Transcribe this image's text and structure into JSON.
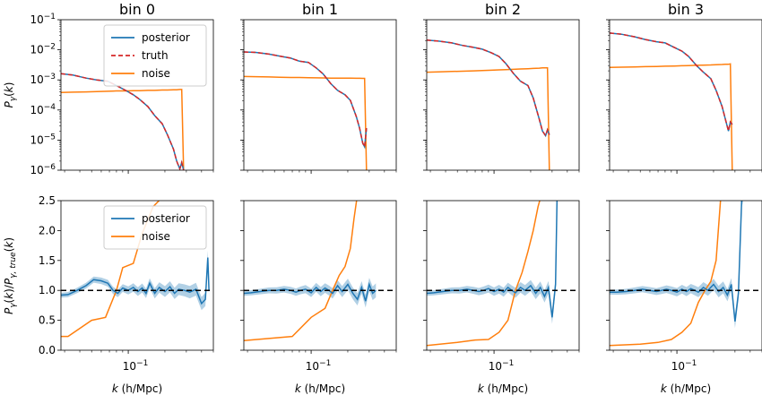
{
  "chart_data": {
    "type": "line",
    "x_axis": {
      "label": "k (h/Mpc)",
      "scale": "log",
      "range": [
        0.028,
        0.5
      ],
      "major_tick_label": "10^-1"
    },
    "top_row": {
      "ylabel": "P_γ(k)",
      "y_scale": "log",
      "ylim": [
        1e-06,
        0.1
      ],
      "yticks": [
        "10^-6",
        "10^-5",
        "10^-4",
        "10^-3",
        "10^-2",
        "10^-1"
      ],
      "legend": [
        "posterior",
        "truth",
        "noise"
      ],
      "legend_position": "upper right of first panel"
    },
    "bottom_row": {
      "ylabel": "P_γ(k)/P_γ,true(k)",
      "y_scale": "linear",
      "ylim": [
        0.0,
        2.5
      ],
      "yticks": [
        "0.0",
        "0.5",
        "1.0",
        "1.5",
        "2.0",
        "2.5"
      ],
      "reference_line": 1.0,
      "legend": [
        "posterior",
        "noise"
      ],
      "legend_position": "upper center of first panel"
    },
    "colors": {
      "posterior": "#1f77b4",
      "truth": "#d62728",
      "noise": "#ff7f0e",
      "reference": "#000000"
    },
    "panels": [
      {
        "title": "bin 0",
        "k": [
          0.028,
          0.035,
          0.045,
          0.055,
          0.068,
          0.08,
          0.095,
          0.11,
          0.125,
          0.145,
          0.165,
          0.19,
          0.21,
          0.235,
          0.25,
          0.265,
          0.275,
          0.285
        ],
        "posterior": [
          0.0016,
          0.00145,
          0.00115,
          0.001,
          0.0009,
          0.00065,
          0.00045,
          0.00032,
          0.00022,
          0.00013,
          6.5e-05,
          3.5e-05,
          1.5e-05,
          5e-06,
          2e-06,
          1.1e-06,
          1.8e-06,
          1e-06
        ],
        "noise": [
          0.00038,
          0.00039,
          0.0004,
          0.00041,
          0.00042,
          0.00043,
          0.00043,
          0.00044,
          0.00044,
          0.00045,
          0.00045,
          0.00046,
          0.00046,
          0.00047,
          0.00047,
          0.00048,
          0.00048,
          1e-06
        ],
        "ratio_k": [
          0.028,
          0.032,
          0.038,
          0.045,
          0.052,
          0.06,
          0.068,
          0.075,
          0.082,
          0.09,
          0.1,
          0.11,
          0.12,
          0.13,
          0.14,
          0.15,
          0.165,
          0.18,
          0.2,
          0.22,
          0.24,
          0.26,
          0.29,
          0.32,
          0.36,
          0.4,
          0.43,
          0.45,
          0.46
        ],
        "ratio_posterior": [
          0.92,
          0.93,
          1.0,
          1.08,
          1.18,
          1.16,
          1.12,
          1.0,
          0.95,
          1.04,
          1.0,
          1.05,
          0.98,
          1.04,
          0.95,
          1.12,
          0.95,
          1.05,
          0.98,
          1.06,
          0.95,
          1.02,
          1.0,
          0.97,
          1.02,
          0.78,
          0.85,
          1.55,
          1.0
        ],
        "ratio_noise": {
          "k": [
            0.028,
            0.032,
            0.05,
            0.065,
            0.08,
            0.09,
            0.11,
            0.13,
            0.16,
            0.2
          ],
          "v": [
            0.23,
            0.23,
            0.5,
            0.55,
            1.0,
            1.38,
            1.45,
            1.95,
            2.4,
            2.6
          ]
        }
      },
      {
        "title": "bin 1",
        "k": [
          0.028,
          0.035,
          0.045,
          0.055,
          0.068,
          0.08,
          0.095,
          0.11,
          0.125,
          0.145,
          0.165,
          0.19,
          0.21,
          0.235,
          0.25,
          0.265,
          0.275,
          0.285
        ],
        "posterior": [
          0.0085,
          0.0082,
          0.0072,
          0.0062,
          0.0053,
          0.0042,
          0.0038,
          0.0025,
          0.0016,
          0.00075,
          0.00045,
          0.00032,
          0.00021,
          6e-05,
          2.5e-05,
          8e-06,
          6e-06,
          2.5e-05
        ],
        "noise": [
          0.0013,
          0.00128,
          0.00125,
          0.00122,
          0.0012,
          0.0012,
          0.00118,
          0.00117,
          0.00116,
          0.00115,
          0.00115,
          0.00114,
          0.00114,
          0.00113,
          0.00113,
          0.00112,
          0.00112,
          1e-06
        ],
        "ratio_k": [
          0.028,
          0.032,
          0.038,
          0.045,
          0.052,
          0.06,
          0.068,
          0.075,
          0.082,
          0.09,
          0.1,
          0.11,
          0.12,
          0.13,
          0.14,
          0.15,
          0.165,
          0.18,
          0.2,
          0.22,
          0.24,
          0.26,
          0.28,
          0.3,
          0.32,
          0.34
        ],
        "ratio_posterior": [
          0.95,
          0.96,
          0.98,
          1.0,
          1.0,
          1.02,
          1.0,
          0.97,
          1.0,
          1.02,
          0.96,
          1.05,
          0.98,
          1.04,
          1.0,
          0.95,
          1.08,
          0.98,
          1.1,
          0.95,
          0.85,
          1.05,
          0.82,
          1.1,
          0.95,
          1.0
        ],
        "ratio_noise": {
          "k": [
            0.028,
            0.07,
            0.1,
            0.13,
            0.15,
            0.17,
            0.19,
            0.21,
            0.225,
            0.24
          ],
          "v": [
            0.16,
            0.23,
            0.55,
            0.7,
            1.0,
            1.25,
            1.4,
            1.7,
            2.2,
            2.6
          ]
        }
      },
      {
        "title": "bin 2",
        "k": [
          0.028,
          0.035,
          0.045,
          0.055,
          0.068,
          0.08,
          0.095,
          0.11,
          0.125,
          0.145,
          0.165,
          0.19,
          0.21,
          0.235,
          0.25,
          0.265,
          0.275,
          0.285
        ],
        "posterior": [
          0.021,
          0.0195,
          0.017,
          0.014,
          0.012,
          0.0105,
          0.008,
          0.006,
          0.0035,
          0.0016,
          0.0009,
          0.00065,
          0.00025,
          5e-05,
          2e-05,
          1.4e-05,
          2.2e-05,
          1.5e-05
        ],
        "noise": [
          0.0018,
          0.00185,
          0.0019,
          0.00195,
          0.002,
          0.00205,
          0.0021,
          0.00215,
          0.0022,
          0.00225,
          0.0023,
          0.00235,
          0.0024,
          0.00245,
          0.0025,
          0.0025,
          0.0025,
          1e-06
        ],
        "ratio_k": [
          0.028,
          0.032,
          0.038,
          0.045,
          0.052,
          0.06,
          0.068,
          0.075,
          0.082,
          0.09,
          0.1,
          0.11,
          0.12,
          0.13,
          0.14,
          0.15,
          0.165,
          0.18,
          0.2,
          0.22,
          0.24,
          0.26,
          0.28,
          0.3,
          0.32,
          0.33,
          0.34
        ],
        "ratio_posterior": [
          0.95,
          0.96,
          0.98,
          1.0,
          1.0,
          1.02,
          1.0,
          0.98,
          1.0,
          1.03,
          0.98,
          1.02,
          0.97,
          1.05,
          1.0,
          0.96,
          1.05,
          1.0,
          1.08,
          0.95,
          1.05,
          0.9,
          1.05,
          0.55,
          1.1,
          2.7,
          2.7
        ],
        "ratio_noise": {
          "k": [
            0.028,
            0.05,
            0.07,
            0.09,
            0.11,
            0.13,
            0.15,
            0.17,
            0.19,
            0.21,
            0.23,
            0.245
          ],
          "v": [
            0.08,
            0.13,
            0.17,
            0.18,
            0.3,
            0.5,
            1.0,
            1.3,
            1.65,
            2.0,
            2.4,
            2.6
          ]
        }
      },
      {
        "title": "bin 3",
        "k": [
          0.028,
          0.035,
          0.045,
          0.055,
          0.068,
          0.08,
          0.095,
          0.11,
          0.125,
          0.145,
          0.165,
          0.19,
          0.21,
          0.235,
          0.25,
          0.265,
          0.275,
          0.285
        ],
        "posterior": [
          0.036,
          0.033,
          0.027,
          0.022,
          0.0185,
          0.017,
          0.012,
          0.009,
          0.006,
          0.003,
          0.0018,
          0.0011,
          0.00045,
          0.00013,
          5e-05,
          2e-05,
          4e-05,
          3.3e-05
        ],
        "noise": [
          0.0026,
          0.00265,
          0.0027,
          0.00275,
          0.0028,
          0.00285,
          0.0029,
          0.00295,
          0.003,
          0.00305,
          0.0031,
          0.00315,
          0.0032,
          0.00325,
          0.0033,
          0.0033,
          0.0034,
          1e-06
        ],
        "ratio_k": [
          0.028,
          0.032,
          0.038,
          0.045,
          0.052,
          0.06,
          0.068,
          0.075,
          0.082,
          0.09,
          0.1,
          0.11,
          0.12,
          0.13,
          0.14,
          0.15,
          0.165,
          0.18,
          0.2,
          0.22,
          0.24,
          0.26,
          0.28,
          0.3,
          0.32,
          0.34,
          0.36
        ],
        "ratio_posterior": [
          0.97,
          0.97,
          0.98,
          1.0,
          1.02,
          1.0,
          0.98,
          1.0,
          1.02,
          1.0,
          0.97,
          1.02,
          0.98,
          1.03,
          1.0,
          0.97,
          1.05,
          1.0,
          1.1,
          0.98,
          1.05,
          0.92,
          1.1,
          0.48,
          0.95,
          2.5,
          2.7
        ],
        "ratio_noise": {
          "k": [
            0.028,
            0.05,
            0.07,
            0.09,
            0.11,
            0.13,
            0.15,
            0.17,
            0.19,
            0.21,
            0.23
          ],
          "v": [
            0.08,
            0.1,
            0.13,
            0.18,
            0.3,
            0.45,
            0.8,
            1.0,
            1.15,
            1.5,
            2.6
          ]
        }
      }
    ]
  }
}
